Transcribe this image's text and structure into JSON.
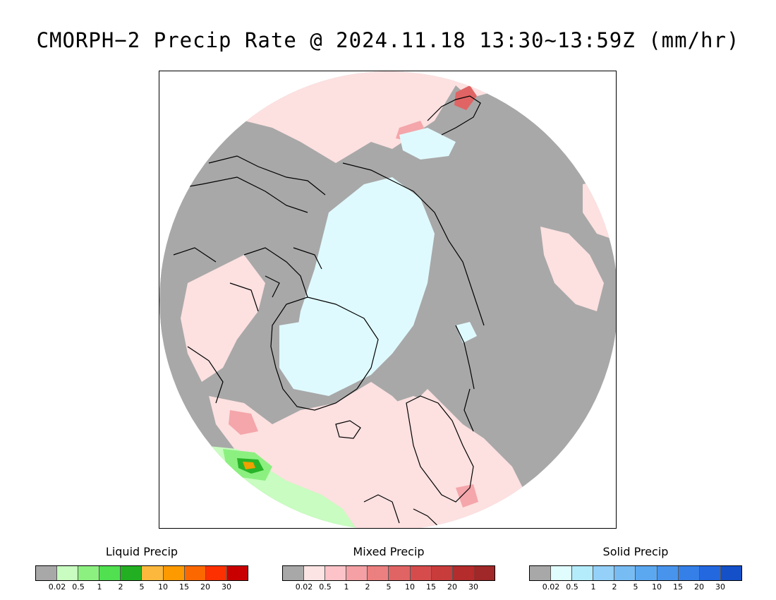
{
  "title": "CMORPH−2 Precip Rate @ 2024.11.18 13:30~13:59Z (mm/hr)",
  "map": {
    "projection": "north polar stereographic",
    "colors": {
      "no_precip": "#a8a8a8",
      "mixed_light": "#fde0e0",
      "mixed_medium": "#f4a6aa",
      "mixed_heavy": "#e06464",
      "solid_light": "#dffaff",
      "liquid_light": "#c8fcc0",
      "liquid_medium": "#8cf080",
      "liquid_heavy": "#28b428",
      "liquid_very_heavy": "#f0a000",
      "coastline": "#000000"
    }
  },
  "legends": [
    {
      "title": "Liquid Precip",
      "colors": [
        "#a8a8a8",
        "#c8fcc0",
        "#8cf080",
        "#50e050",
        "#22b022",
        "#fcb83c",
        "#fc9a00",
        "#fc6800",
        "#fc3000",
        "#c80000"
      ],
      "ticks": [
        "0.02",
        "0.5",
        "1",
        "2",
        "5",
        "10",
        "15",
        "20",
        "30"
      ]
    },
    {
      "title": "Mixed Precip",
      "colors": [
        "#a8a8a8",
        "#fde4e4",
        "#fcc4c8",
        "#f4a0a4",
        "#ec8080",
        "#e06464",
        "#d64c4c",
        "#c83c3c",
        "#b42c2c",
        "#a02828"
      ],
      "ticks": [
        "0.02",
        "0.5",
        "1",
        "2",
        "5",
        "10",
        "15",
        "20",
        "30"
      ]
    },
    {
      "title": "Solid Precip",
      "colors": [
        "#a8a8a8",
        "#e0fcfc",
        "#b4ecfc",
        "#94d0f8",
        "#78bcf4",
        "#5ca8f0",
        "#4894ec",
        "#3480e8",
        "#2468e0",
        "#1450c8"
      ],
      "ticks": [
        "0.02",
        "0.5",
        "1",
        "2",
        "5",
        "10",
        "15",
        "20",
        "30"
      ]
    }
  ]
}
